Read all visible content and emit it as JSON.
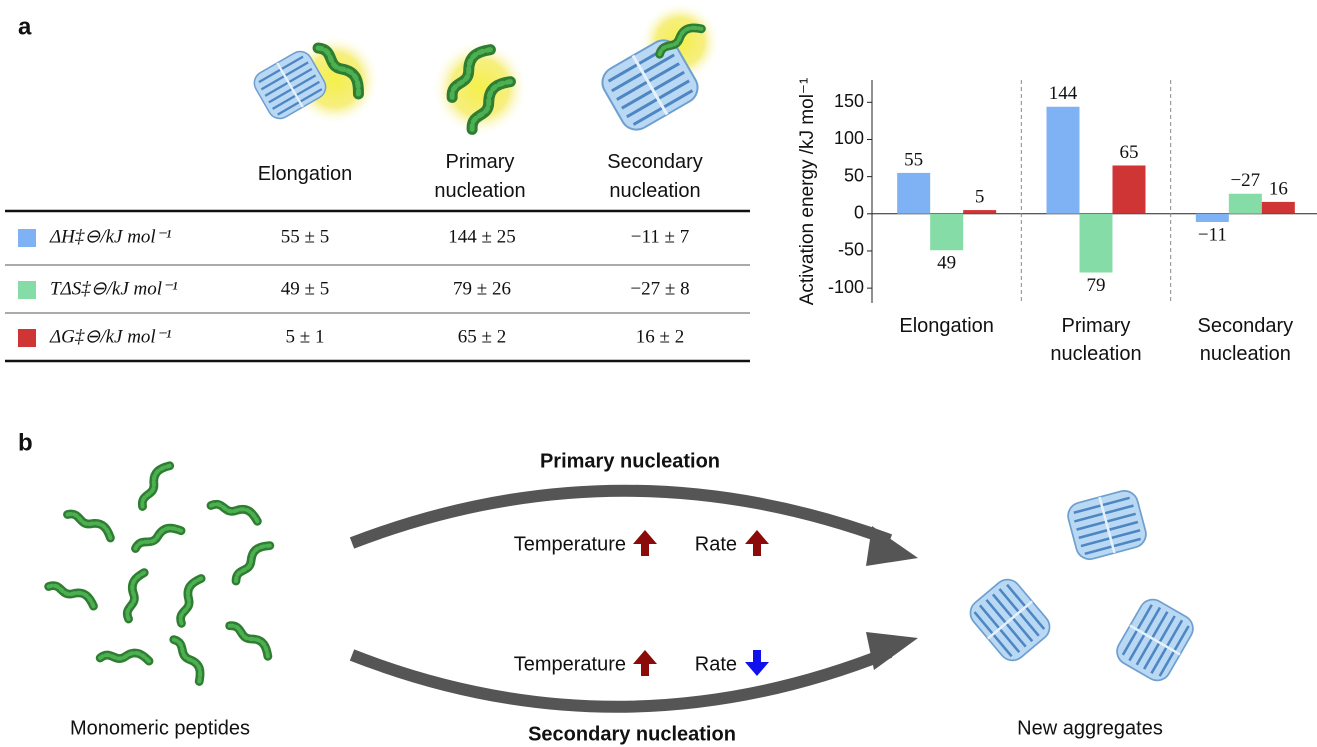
{
  "panel_a": {
    "label": "a",
    "table": {
      "columns": [
        "Elongation",
        "Primary nucleation",
        "Secondary nucleation"
      ],
      "rows": [
        {
          "label": "ΔH‡⊖/kJ mol⁻¹",
          "cells": [
            "55 ± 5",
            "144 ± 25",
            "−11 ± 7"
          ]
        },
        {
          "label": "TΔS‡⊖/kJ mol⁻¹",
          "cells": [
            "49 ± 5",
            "79 ± 26",
            "−27 ± 8"
          ]
        },
        {
          "label": "ΔG‡⊖/kJ mol⁻¹",
          "cells": [
            "5 ± 1",
            "65 ± 2",
            "16 ± 2"
          ]
        }
      ]
    }
  },
  "chart_data": {
    "type": "bar",
    "y_label": "Activation energy /kJ mol⁻¹",
    "categories": [
      "Elongation",
      "Primary nucleation",
      "Secondary nucleation"
    ],
    "series": [
      {
        "color": "#7fb2f5",
        "values": [
          55,
          144,
          -11
        ],
        "value_labels": [
          "55",
          "144",
          "−11"
        ]
      },
      {
        "color": "#86dca6",
        "values": [
          -49,
          -79,
          27
        ],
        "value_labels": [
          "49",
          "79",
          "−27"
        ]
      },
      {
        "color": "#d03535",
        "values": [
          5,
          65,
          16
        ],
        "value_labels": [
          "5",
          "65",
          "16"
        ]
      }
    ],
    "ylim": [
      -120,
      180
    ],
    "yticks": [
      -100,
      -50,
      0,
      50,
      100,
      150
    ],
    "group_separators": true
  },
  "panel_b": {
    "label": "b",
    "top_arrow": {
      "title": "Primary nucleation",
      "temperature": "Temperature",
      "rate": "Rate"
    },
    "bottom_arrow": {
      "title": "Secondary nucleation",
      "temperature": "Temperature",
      "rate": "Rate"
    },
    "source": "Monomeric peptides",
    "product": "New aggregates"
  }
}
